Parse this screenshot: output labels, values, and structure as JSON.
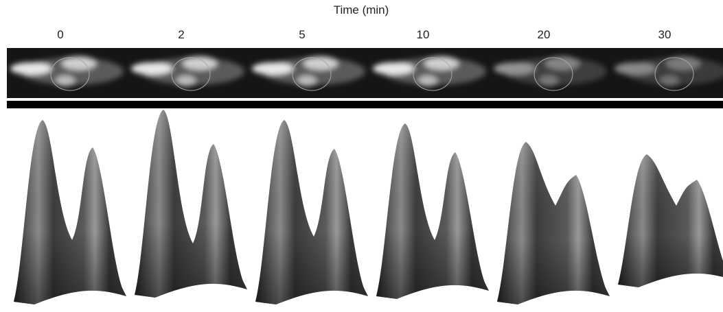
{
  "header": {
    "title": "Time (min)"
  },
  "panels": [
    {
      "label": "0"
    },
    {
      "label": "2"
    },
    {
      "label": "5"
    },
    {
      "label": "10"
    },
    {
      "label": "20"
    },
    {
      "label": "30"
    }
  ]
}
